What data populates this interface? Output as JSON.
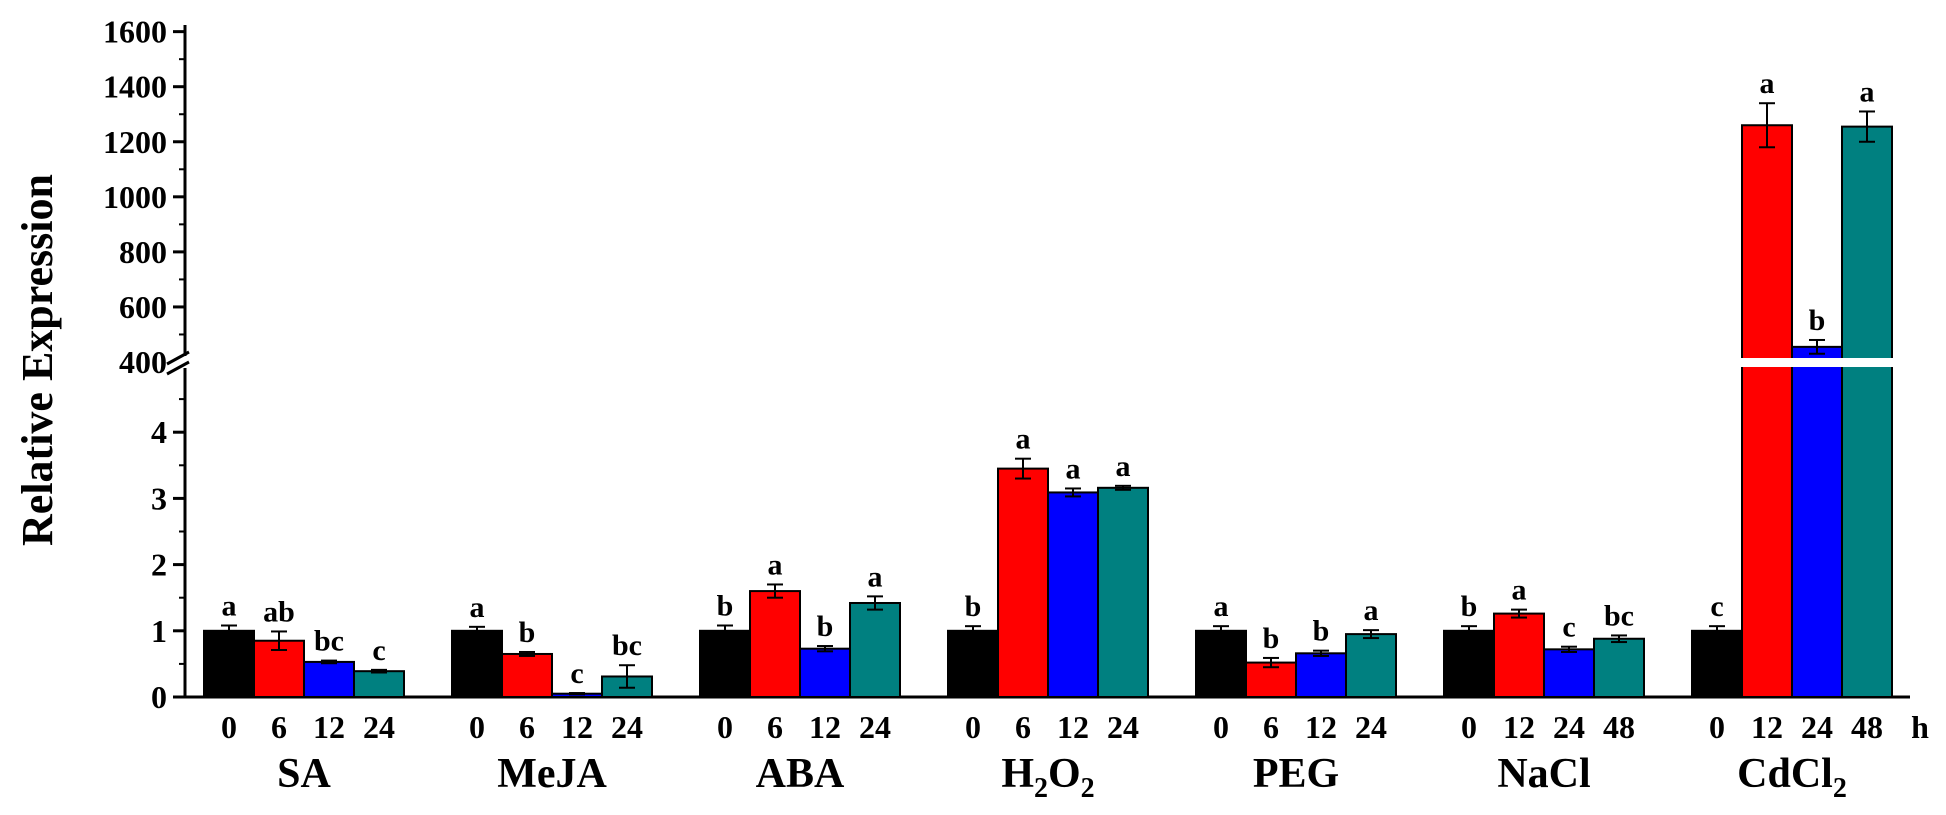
{
  "chart_data": {
    "type": "bar",
    "ylabel": "Relative Expression",
    "x_unit_label": "h",
    "y_axis": {
      "lower_range": [
        0,
        5
      ],
      "lower_ticks": [
        "0",
        "1",
        "2",
        "3",
        "4"
      ],
      "break_label": "400",
      "upper_range": [
        400,
        1600
      ],
      "upper_ticks": [
        "600",
        "800",
        "1000",
        "1200",
        "1400",
        "1600"
      ]
    },
    "colors": [
      "#000000",
      "#ff0000",
      "#0000ff",
      "#008080"
    ],
    "groups": [
      {
        "name": "SA",
        "times": [
          "0",
          "6",
          "12",
          "24"
        ],
        "values": [
          1.0,
          0.85,
          0.53,
          0.39
        ],
        "errors": [
          0.08,
          0.14,
          0.02,
          0.02
        ],
        "letters": [
          "a",
          "ab",
          "bc",
          "c"
        ]
      },
      {
        "name": "MeJA",
        "times": [
          "0",
          "6",
          "12",
          "24"
        ],
        "values": [
          1.0,
          0.65,
          0.05,
          0.31
        ],
        "errors": [
          0.06,
          0.03,
          0.01,
          0.17
        ],
        "letters": [
          "a",
          "b",
          "c",
          "bc"
        ]
      },
      {
        "name": "ABA",
        "times": [
          "0",
          "6",
          "12",
          "24"
        ],
        "values": [
          1.0,
          1.6,
          0.73,
          1.42
        ],
        "errors": [
          0.08,
          0.1,
          0.04,
          0.1
        ],
        "letters": [
          "b",
          "a",
          "b",
          "a"
        ]
      },
      {
        "name_main": "H",
        "name_sub1": "2",
        "name_mid": "O",
        "name_sub2": "2",
        "times": [
          "0",
          "6",
          "12",
          "24"
        ],
        "values": [
          1.0,
          3.45,
          3.09,
          3.16
        ],
        "errors": [
          0.07,
          0.15,
          0.06,
          0.03
        ],
        "letters": [
          "b",
          "a",
          "a",
          "a"
        ]
      },
      {
        "name": "PEG",
        "times": [
          "0",
          "6",
          "12",
          "24"
        ],
        "values": [
          1.0,
          0.52,
          0.66,
          0.95
        ],
        "errors": [
          0.07,
          0.07,
          0.04,
          0.06
        ],
        "letters": [
          "a",
          "b",
          "b",
          "a"
        ]
      },
      {
        "name": "NaCl",
        "times": [
          "0",
          "12",
          "24",
          "48"
        ],
        "values": [
          1.0,
          1.26,
          0.72,
          0.88
        ],
        "errors": [
          0.07,
          0.06,
          0.04,
          0.05
        ],
        "letters": [
          "b",
          "a",
          "c",
          "bc"
        ]
      },
      {
        "name_main": "CdCl",
        "name_sub1": "2",
        "times": [
          "0",
          "12",
          "24",
          "48"
        ],
        "values": [
          1.0,
          1260,
          455,
          1255
        ],
        "errors": [
          0.07,
          80,
          25,
          55
        ],
        "letters": [
          "c",
          "a",
          "b",
          "a"
        ]
      }
    ]
  }
}
